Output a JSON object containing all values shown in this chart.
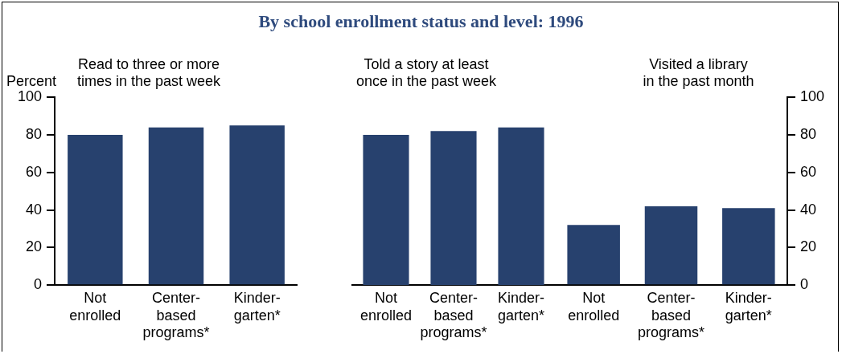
{
  "chart_data": [
    {
      "type": "bar",
      "subtitle": "Read to three or more\ntimes in the past week",
      "ylabel": "Percent",
      "categories": [
        "Not\nenrolled",
        "Center-\nbased\nprograms*",
        "Kinder-\ngarten*"
      ],
      "values": [
        80,
        84,
        85
      ],
      "color": "#27416e",
      "ylim": [
        0,
        100
      ],
      "yticks": [
        0,
        20,
        40,
        60,
        80,
        100
      ],
      "grid": false,
      "legend": false
    },
    {
      "type": "bar",
      "title": "By school enrollment status and level:  1996",
      "subtitle": "Told a story at least\nonce in the past week",
      "categories": [
        "Not\nenrolled",
        "Center-\nbased\nprograms*",
        "Kinder-\ngarten*"
      ],
      "values": [
        80,
        82,
        84
      ],
      "color": "#27416e",
      "ylim": [
        0,
        100
      ],
      "yticks": [
        0,
        20,
        40,
        60,
        80,
        100
      ],
      "tick_labels": "x",
      "grid": false,
      "legend": false
    },
    {
      "type": "bar",
      "subtitle": "Visited a library\nin the past month",
      "categories": [
        "Not\nenrolled",
        "Center-\nbased\nprograms*",
        "Kinder-\ngarten*"
      ],
      "values": [
        32,
        42,
        41
      ],
      "color": "#27416e",
      "ylim": [
        0,
        100
      ],
      "yticks": [
        0,
        20,
        40,
        60,
        80,
        100
      ],
      "grid": false,
      "legend": false
    }
  ]
}
